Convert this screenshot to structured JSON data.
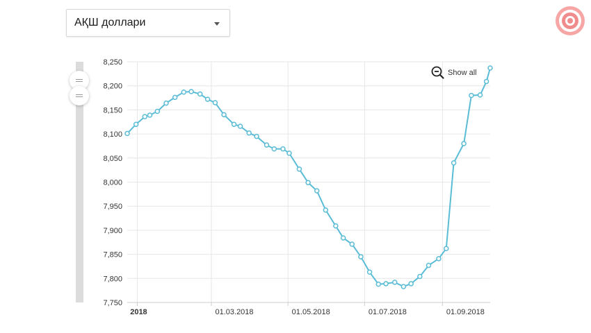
{
  "currency_selector": {
    "selected": "АҚШ доллари",
    "icon": "chevron-down-icon"
  },
  "logo": {
    "icon": "target-icon",
    "color": "#f08c8c"
  },
  "zoom": {
    "label": "Show all",
    "icon": "zoom-out-icon"
  },
  "colors": {
    "series": "#5bbcd6",
    "grid": "#e6e6e6",
    "axis_text": "#333333"
  },
  "chart_data": {
    "type": "line",
    "title": "",
    "xlabel": "",
    "ylabel": "",
    "ylim": [
      7750,
      8250
    ],
    "y_ticks": [
      "8,250",
      "8,200",
      "8,150",
      "8,100",
      "8,050",
      "8,000",
      "7,950",
      "7,900",
      "7,850",
      "7,800",
      "7,750"
    ],
    "y_tick_values": [
      8250,
      8200,
      8150,
      8100,
      8050,
      8000,
      7950,
      7900,
      7850,
      7800,
      7750
    ],
    "x_ticks": [
      {
        "label": "2018",
        "date": "2018-01-01",
        "bold": true
      },
      {
        "label": "01.03.2018",
        "date": "2018-03-01",
        "bold": false
      },
      {
        "label": "01.05.2018",
        "date": "2018-05-01",
        "bold": false
      },
      {
        "label": "01.07.2018",
        "date": "2018-07-01",
        "bold": false
      },
      {
        "label": "01.09.2018",
        "date": "2018-09-01",
        "bold": false
      }
    ],
    "xlim": [
      "2017-12-24",
      "2018-10-09"
    ],
    "grid": true,
    "series": [
      {
        "points": [
          [
            "2017-12-24",
            8101
          ],
          [
            "2017-12-31",
            8120
          ],
          [
            "2018-01-07",
            8136
          ],
          [
            "2018-01-11",
            8139
          ],
          [
            "2018-01-17",
            8147
          ],
          [
            "2018-01-24",
            8164
          ],
          [
            "2018-01-31",
            8176
          ],
          [
            "2018-02-07",
            8187
          ],
          [
            "2018-02-13",
            8188
          ],
          [
            "2018-02-20",
            8183
          ],
          [
            "2018-02-26",
            8172
          ],
          [
            "2018-03-04",
            8165
          ],
          [
            "2018-03-11",
            8140
          ],
          [
            "2018-03-19",
            8120
          ],
          [
            "2018-03-24",
            8116
          ],
          [
            "2018-03-31",
            8102
          ],
          [
            "2018-04-06",
            8095
          ],
          [
            "2018-04-14",
            8077
          ],
          [
            "2018-04-20",
            8069
          ],
          [
            "2018-04-27",
            8069
          ],
          [
            "2018-05-02",
            8060
          ],
          [
            "2018-05-10",
            8027
          ],
          [
            "2018-05-17",
            7999
          ],
          [
            "2018-05-24",
            7982
          ],
          [
            "2018-05-31",
            7942
          ],
          [
            "2018-06-08",
            7909
          ],
          [
            "2018-06-14",
            7884
          ],
          [
            "2018-06-21",
            7871
          ],
          [
            "2018-06-28",
            7845
          ],
          [
            "2018-07-05",
            7813
          ],
          [
            "2018-07-12",
            7788
          ],
          [
            "2018-07-18",
            7789
          ],
          [
            "2018-07-25",
            7792
          ],
          [
            "2018-08-01",
            7783
          ],
          [
            "2018-08-07",
            7789
          ],
          [
            "2018-08-14",
            7804
          ],
          [
            "2018-08-21",
            7827
          ],
          [
            "2018-08-29",
            7841
          ],
          [
            "2018-09-04",
            7862
          ],
          [
            "2018-09-10",
            8040
          ],
          [
            "2018-09-18",
            8080
          ],
          [
            "2018-09-24",
            8180
          ],
          [
            "2018-10-01",
            8181
          ],
          [
            "2018-10-06",
            8209
          ],
          [
            "2018-10-09",
            8237
          ]
        ]
      }
    ]
  }
}
